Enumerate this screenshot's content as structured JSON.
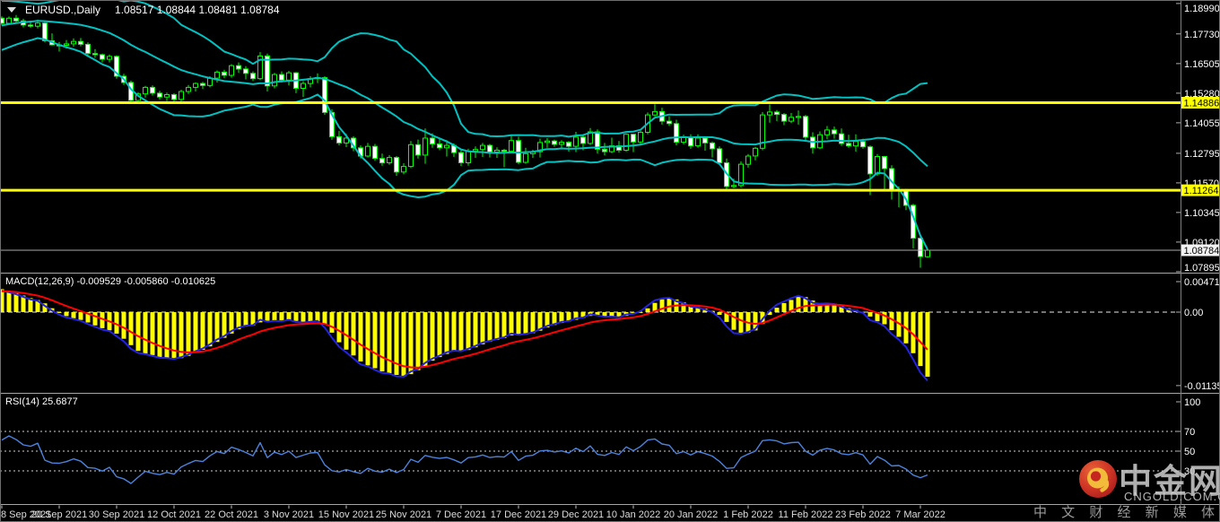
{
  "titlebar": {
    "symbol_period": "EURUSD.,Daily",
    "quote": "1.08517 1.08844 1.08481 1.08784"
  },
  "panels": {
    "macd_label": "MACD(12,26,9) -0.009529 -0.005860 -0.010625",
    "rsi_label": "RSI(14) 25.6877"
  },
  "watermark": {
    "site_name": "中金网",
    "domain": "CNGOLD.COM.CN",
    "tagline": "中 文 财 经 新 媒 体"
  },
  "colors": {
    "background": "#000000",
    "candle_outline": "#00FF00",
    "bull_fill": "#000000",
    "bear_fill": "#FFFFFF",
    "bands": "#00C2C2",
    "hline_yellow": "#FFFF00",
    "macd_hist": "#FFFF00",
    "macd_fast_blue": "#2323E0",
    "macd_signal_red": "#FF0000",
    "rsi_line": "#4C82DC",
    "axis_text": "#FFFFFF",
    "date_text": "#DCDCDC",
    "separator": "#A6A6A6",
    "axis_line": "#808080",
    "current_price_line": "#A8A8A8",
    "level_dots": "#D0D0D0",
    "zero_dash": "#E8E8E8",
    "badge_yellow": "#FFFF00",
    "badge_white": "#F2F2F2"
  },
  "price_axis": {
    "labels": [
      1.1899,
      1.1773,
      1.16505,
      1.1528,
      1.14055,
      1.12795,
      1.1157,
      1.10345,
      1.0912,
      1.07895
    ],
    "badges": [
      {
        "price": 1.14886,
        "label": "1.14886",
        "bg": "#FFFF00",
        "fg": "#000000"
      },
      {
        "price": 1.11264,
        "label": "1.11264",
        "bg": "#FFFF00",
        "fg": "#000000"
      },
      {
        "price": 1.08784,
        "label": "1.08784",
        "bg": "#F2F2F2",
        "fg": "#000000"
      }
    ]
  },
  "macd_axis": [
    {
      "value": 0.004713,
      "label": "0.004713"
    },
    {
      "value": 0,
      "label": "0.00"
    },
    {
      "value": -0.011355,
      "label": "-0.011355"
    }
  ],
  "rsi_axis": [
    {
      "value": 100,
      "label": "100"
    },
    {
      "value": 70,
      "label": "70"
    },
    {
      "value": 50,
      "label": "50"
    },
    {
      "value": 30,
      "label": "30"
    }
  ],
  "time_axis": [
    "8 Sep 2021",
    "20 Sep 2021",
    "30 Sep 2021",
    "12 Oct 2021",
    "22 Oct 2021",
    "3 Nov 2021",
    "15 Nov 2021",
    "25 Nov 2021",
    "7 Dec 2021",
    "17 Dec 2021",
    "29 Dec 2021",
    "10 Jan 2022",
    "20 Jan 2022",
    "1 Feb 2022",
    "11 Feb 2022",
    "23 Feb 2022",
    "7 Mar 2022"
  ],
  "chart_data": {
    "type": "candlestick",
    "symbol": "EURUSD.",
    "timeframe": "Daily",
    "title": "EURUSD.,Daily 1.08517 1.08844 1.08481 1.08784",
    "price_range": {
      "top": 1.19134,
      "bottom": 1.07893
    },
    "macd_range": {
      "top": 0.00582,
      "bottom": -0.0122
    },
    "yellow_hlines": [
      1.14886,
      1.11264
    ],
    "current_price": 1.08784,
    "last_bar": {
      "open": 1.08517,
      "high": 1.08844,
      "low": 1.08481,
      "close": 1.08784
    },
    "indicators": {
      "bollinger": {
        "period": 20,
        "deviation": 2
      },
      "macd": {
        "fast": 12,
        "slow": 26,
        "signal": 9,
        "displayed_values": [
          -0.009529,
          -0.00586,
          -0.010625
        ]
      },
      "rsi": {
        "period": 14,
        "displayed_value": 25.6877,
        "levels": [
          70,
          50,
          30
        ]
      }
    },
    "pre_closes": [
      1.172,
      1.1728,
      1.1738,
      1.1745,
      1.1752,
      1.176,
      1.1768,
      1.1775,
      1.1782,
      1.179,
      1.18,
      1.1812,
      1.1825,
      1.184,
      1.1855,
      1.1872,
      1.1888,
      1.1895,
      1.1872,
      1.1848
    ],
    "ohlc": [
      [
        1.1838,
        1.1846,
        1.1808,
        1.1817
      ],
      [
        1.1817,
        1.1845,
        1.1812,
        1.1838
      ],
      [
        1.1838,
        1.1851,
        1.182,
        1.1827
      ],
      [
        1.1827,
        1.1836,
        1.18,
        1.181
      ],
      [
        1.181,
        1.1828,
        1.1798,
        1.1805
      ],
      [
        1.1805,
        1.1832,
        1.1796,
        1.1818
      ],
      [
        1.1818,
        1.1822,
        1.1738,
        1.1745
      ],
      [
        1.1745,
        1.1775,
        1.1725,
        1.1728
      ],
      [
        1.1728,
        1.174,
        1.17,
        1.1726
      ],
      [
        1.1726,
        1.1748,
        1.1712,
        1.1732
      ],
      [
        1.1732,
        1.1755,
        1.172,
        1.1742
      ],
      [
        1.1742,
        1.1756,
        1.1722,
        1.173
      ],
      [
        1.173,
        1.1738,
        1.1685,
        1.1692
      ],
      [
        1.1692,
        1.171,
        1.1674,
        1.1687
      ],
      [
        1.1687,
        1.1692,
        1.1655,
        1.1668
      ],
      [
        1.1668,
        1.1688,
        1.1655,
        1.168
      ],
      [
        1.168,
        1.1685,
        1.1588,
        1.1598
      ],
      [
        1.1598,
        1.1608,
        1.1562,
        1.1572
      ],
      [
        1.1572,
        1.158,
        1.1488,
        1.1498
      ],
      [
        1.1498,
        1.1532,
        1.149,
        1.1525
      ],
      [
        1.1525,
        1.1558,
        1.151,
        1.1552
      ],
      [
        1.1552,
        1.156,
        1.1518,
        1.1528
      ],
      [
        1.1528,
        1.1538,
        1.1502,
        1.1512
      ],
      [
        1.1512,
        1.153,
        1.1495,
        1.1522
      ],
      [
        1.1522,
        1.1528,
        1.1492,
        1.1502
      ],
      [
        1.1502,
        1.1542,
        1.1492,
        1.1535
      ],
      [
        1.1535,
        1.1562,
        1.1525,
        1.1552
      ],
      [
        1.1552,
        1.1572,
        1.1535,
        1.1568
      ],
      [
        1.1568,
        1.1575,
        1.1545,
        1.156
      ],
      [
        1.156,
        1.1598,
        1.1552,
        1.159
      ],
      [
        1.159,
        1.1622,
        1.1572,
        1.1615
      ],
      [
        1.1615,
        1.1625,
        1.159,
        1.1602
      ],
      [
        1.1602,
        1.1648,
        1.1592,
        1.1642
      ],
      [
        1.1642,
        1.1655,
        1.1612,
        1.1628
      ],
      [
        1.1628,
        1.164,
        1.1585,
        1.161
      ],
      [
        1.161,
        1.1618,
        1.1578,
        1.1588
      ],
      [
        1.1588,
        1.1698,
        1.1582,
        1.1682
      ],
      [
        1.1682,
        1.1692,
        1.1535,
        1.1558
      ],
      [
        1.1558,
        1.1612,
        1.1548,
        1.1605
      ],
      [
        1.1605,
        1.1618,
        1.1572,
        1.1582
      ],
      [
        1.1582,
        1.162,
        1.156,
        1.1612
      ],
      [
        1.1612,
        1.1616,
        1.1528,
        1.1548
      ],
      [
        1.1548,
        1.1578,
        1.1512,
        1.1568
      ],
      [
        1.1568,
        1.1598,
        1.1552,
        1.1588
      ],
      [
        1.1588,
        1.161,
        1.157,
        1.1592
      ],
      [
        1.1592,
        1.1598,
        1.1438,
        1.1448
      ],
      [
        1.1448,
        1.1462,
        1.1335,
        1.1348
      ],
      [
        1.1348,
        1.1372,
        1.1312,
        1.1322
      ],
      [
        1.1322,
        1.136,
        1.1305,
        1.1342
      ],
      [
        1.1342,
        1.135,
        1.1288,
        1.1302
      ],
      [
        1.1302,
        1.1312,
        1.1258,
        1.1268
      ],
      [
        1.1268,
        1.1322,
        1.1262,
        1.1308
      ],
      [
        1.1308,
        1.1318,
        1.1248,
        1.1258
      ],
      [
        1.1258,
        1.1278,
        1.1228,
        1.124
      ],
      [
        1.124,
        1.1272,
        1.1232,
        1.1262
      ],
      [
        1.1262,
        1.1268,
        1.1186,
        1.1202
      ],
      [
        1.1202,
        1.1238,
        1.1192,
        1.1225
      ],
      [
        1.1225,
        1.133,
        1.1218,
        1.1315
      ],
      [
        1.1315,
        1.1336,
        1.1258,
        1.1272
      ],
      [
        1.1272,
        1.1382,
        1.1236,
        1.1342
      ],
      [
        1.1342,
        1.1362,
        1.1302,
        1.1318
      ],
      [
        1.1318,
        1.1342,
        1.1292,
        1.1302
      ],
      [
        1.1302,
        1.1334,
        1.1266,
        1.1312
      ],
      [
        1.1312,
        1.132,
        1.1264,
        1.1282
      ],
      [
        1.1282,
        1.1292,
        1.1226,
        1.124
      ],
      [
        1.124,
        1.1298,
        1.1228,
        1.1288
      ],
      [
        1.1288,
        1.1308,
        1.126,
        1.1295
      ],
      [
        1.1295,
        1.1322,
        1.1264,
        1.1312
      ],
      [
        1.1312,
        1.1318,
        1.1262,
        1.1285
      ],
      [
        1.1285,
        1.1304,
        1.126,
        1.1292
      ],
      [
        1.1292,
        1.1298,
        1.1222,
        1.1288
      ],
      [
        1.1288,
        1.1358,
        1.1282,
        1.1332
      ],
      [
        1.1332,
        1.1348,
        1.1234,
        1.1242
      ],
      [
        1.1242,
        1.1302,
        1.1236,
        1.1278
      ],
      [
        1.1278,
        1.1294,
        1.126,
        1.1286
      ],
      [
        1.1286,
        1.134,
        1.1262,
        1.1324
      ],
      [
        1.1324,
        1.1342,
        1.1302,
        1.133
      ],
      [
        1.133,
        1.1336,
        1.1306,
        1.1316
      ],
      [
        1.1316,
        1.1334,
        1.1302,
        1.1325
      ],
      [
        1.1325,
        1.133,
        1.1286,
        1.1308
      ],
      [
        1.1308,
        1.1368,
        1.1284,
        1.1346
      ],
      [
        1.1346,
        1.1358,
        1.1292,
        1.132
      ],
      [
        1.132,
        1.1384,
        1.1314,
        1.1368
      ],
      [
        1.1368,
        1.1378,
        1.1278,
        1.1296
      ],
      [
        1.1296,
        1.1322,
        1.127,
        1.1286
      ],
      [
        1.1286,
        1.1344,
        1.128,
        1.131
      ],
      [
        1.131,
        1.133,
        1.1282,
        1.1292
      ],
      [
        1.1292,
        1.1362,
        1.1286,
        1.1358
      ],
      [
        1.1358,
        1.136,
        1.1284,
        1.1326
      ],
      [
        1.1326,
        1.1372,
        1.1312,
        1.1366
      ],
      [
        1.1366,
        1.1448,
        1.1358,
        1.1438
      ],
      [
        1.1438,
        1.1482,
        1.1432,
        1.1452
      ],
      [
        1.1452,
        1.1468,
        1.1398,
        1.1412
      ],
      [
        1.1412,
        1.1432,
        1.1392,
        1.1402
      ],
      [
        1.1402,
        1.1418,
        1.1312,
        1.1325
      ],
      [
        1.1325,
        1.1356,
        1.1316,
        1.1344
      ],
      [
        1.1344,
        1.1358,
        1.1298,
        1.131
      ],
      [
        1.131,
        1.1358,
        1.1302,
        1.1342
      ],
      [
        1.1342,
        1.1346,
        1.129,
        1.1322
      ],
      [
        1.1322,
        1.1328,
        1.1262,
        1.1298
      ],
      [
        1.1298,
        1.1308,
        1.1232,
        1.124
      ],
      [
        1.124,
        1.1258,
        1.1128,
        1.1142
      ],
      [
        1.1142,
        1.1174,
        1.1135,
        1.1146
      ],
      [
        1.1146,
        1.1246,
        1.1138,
        1.1234
      ],
      [
        1.1234,
        1.1276,
        1.122,
        1.1268
      ],
      [
        1.1268,
        1.1306,
        1.125,
        1.13
      ],
      [
        1.13,
        1.145,
        1.1292,
        1.1438
      ],
      [
        1.1438,
        1.1481,
        1.1406,
        1.145
      ],
      [
        1.145,
        1.1458,
        1.1412,
        1.144
      ],
      [
        1.144,
        1.1446,
        1.1396,
        1.1412
      ],
      [
        1.1412,
        1.1446,
        1.1404,
        1.1428
      ],
      [
        1.1428,
        1.1456,
        1.1398,
        1.1432
      ],
      [
        1.1432,
        1.1438,
        1.1328,
        1.1346
      ],
      [
        1.1346,
        1.1366,
        1.1278,
        1.1302
      ],
      [
        1.1302,
        1.137,
        1.1296,
        1.1356
      ],
      [
        1.1356,
        1.1392,
        1.1338,
        1.1376
      ],
      [
        1.1376,
        1.139,
        1.134,
        1.136
      ],
      [
        1.136,
        1.1382,
        1.131,
        1.132
      ],
      [
        1.132,
        1.1356,
        1.1302,
        1.131
      ],
      [
        1.131,
        1.1358,
        1.1286,
        1.1328
      ],
      [
        1.1328,
        1.134,
        1.1298,
        1.1306
      ],
      [
        1.1306,
        1.1312,
        1.1106,
        1.1194
      ],
      [
        1.1194,
        1.1276,
        1.1186,
        1.1266
      ],
      [
        1.1266,
        1.1268,
        1.1122,
        1.1216
      ],
      [
        1.1216,
        1.123,
        1.1088,
        1.1124
      ],
      [
        1.1124,
        1.1142,
        1.1056,
        1.1128
      ],
      [
        1.1128,
        1.1132,
        1.1044,
        1.1064
      ],
      [
        1.1064,
        1.107,
        1.0886,
        1.0928
      ],
      [
        1.0928,
        1.0934,
        1.0806,
        1.0852
      ],
      [
        1.08517,
        1.08844,
        1.08481,
        1.08784
      ]
    ]
  }
}
